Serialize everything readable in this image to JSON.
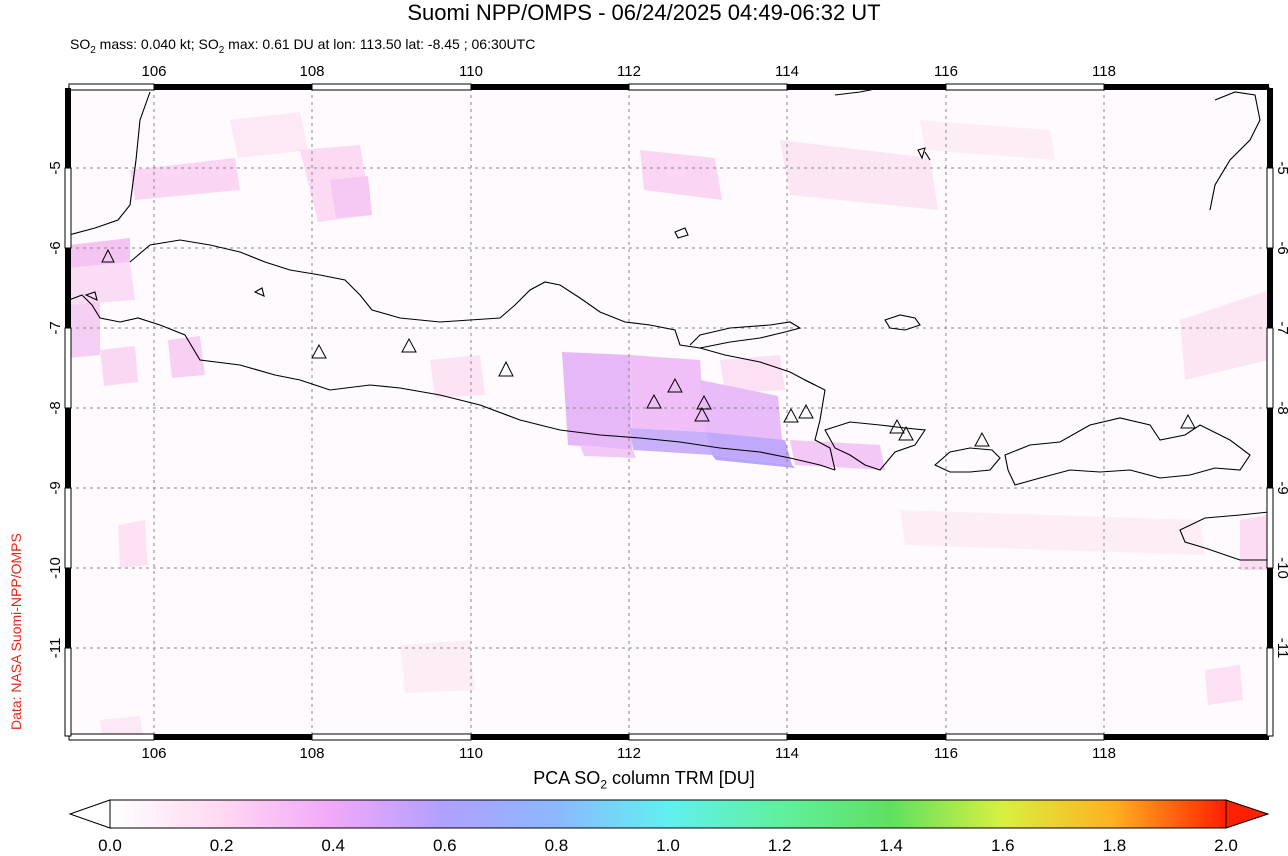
{
  "header": {
    "title": "Suomi NPP/OMPS - 06/24/2025 04:49-06:32 UT",
    "subtitle_prefix": "SO",
    "subtitle_sub1": "2",
    "subtitle_mid": " mass: 0.040 kt; SO",
    "subtitle_sub2": "2",
    "subtitle_rest": " max: 0.61 DU at lon: 113.50 lat: -8.45 ; 06:30UTC"
  },
  "credit": "Data: NASA Suomi-NPP/OMPS",
  "map": {
    "lon_ticks": [
      "106",
      "108",
      "110",
      "112",
      "114",
      "116",
      "118"
    ],
    "lat_ticks": [
      "-5",
      "-6",
      "-7",
      "-8",
      "-9",
      "-10",
      "-11"
    ],
    "volcano_marker": "triangle-icon"
  },
  "colorbar": {
    "title_prefix": "PCA SO",
    "title_sub": "2",
    "title_suffix": " column TRM [DU]",
    "ticks": [
      "0.0",
      "0.2",
      "0.4",
      "0.6",
      "0.8",
      "1.0",
      "1.2",
      "1.4",
      "1.6",
      "1.8",
      "2.0"
    ],
    "colors": [
      "#ffffff",
      "#ffd8f2",
      "#f0a8f8",
      "#b0a0ff",
      "#8cb8ff",
      "#60f0f0",
      "#60f0a0",
      "#60e060",
      "#d8f040",
      "#ffb020",
      "#ff2000"
    ]
  }
}
